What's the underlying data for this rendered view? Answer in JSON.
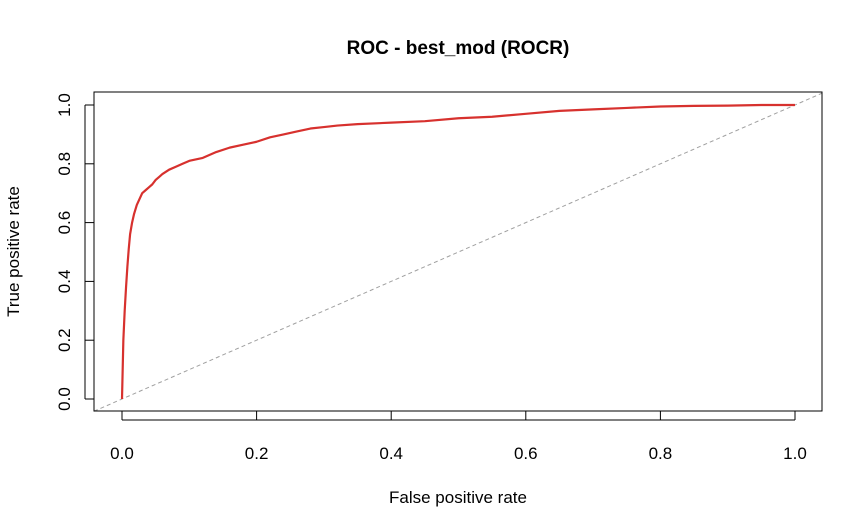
{
  "chart_data": {
    "type": "line",
    "title": "ROC - best_mod (ROCR)",
    "xlabel": "False positive rate",
    "ylabel": "True positive rate",
    "xlim": [
      0,
      1
    ],
    "ylim": [
      0,
      1
    ],
    "x_ticks": [
      "0.0",
      "0.2",
      "0.4",
      "0.6",
      "0.8",
      "1.0"
    ],
    "y_ticks": [
      "0.0",
      "0.2",
      "0.4",
      "0.6",
      "0.8",
      "1.0"
    ],
    "grid": false,
    "legend": "none",
    "series": [
      {
        "color": "#d7312e",
        "x": [
          0,
          0.002,
          0.004,
          0.006,
          0.008,
          0.01,
          0.012,
          0.015,
          0.018,
          0.022,
          0.026,
          0.03,
          0.035,
          0.04,
          0.045,
          0.05,
          0.055,
          0.06,
          0.07,
          0.08,
          0.09,
          0.1,
          0.12,
          0.14,
          0.16,
          0.18,
          0.2,
          0.22,
          0.24,
          0.26,
          0.28,
          0.3,
          0.32,
          0.35,
          0.4,
          0.45,
          0.5,
          0.55,
          0.6,
          0.65,
          0.7,
          0.75,
          0.8,
          0.85,
          0.9,
          0.95,
          1.0
        ],
        "y": [
          0,
          0.2,
          0.3,
          0.38,
          0.45,
          0.51,
          0.56,
          0.6,
          0.63,
          0.66,
          0.68,
          0.7,
          0.71,
          0.72,
          0.73,
          0.745,
          0.755,
          0.765,
          0.78,
          0.79,
          0.8,
          0.81,
          0.82,
          0.84,
          0.855,
          0.865,
          0.875,
          0.89,
          0.9,
          0.91,
          0.92,
          0.925,
          0.93,
          0.935,
          0.94,
          0.945,
          0.955,
          0.96,
          0.97,
          0.98,
          0.985,
          0.99,
          0.995,
          0.997,
          0.998,
          1.0,
          1.0
        ]
      }
    ],
    "reference_line": {
      "x": [
        0,
        1
      ],
      "y": [
        0,
        1
      ],
      "color": "#a0a0a0",
      "style": "dashed"
    }
  }
}
